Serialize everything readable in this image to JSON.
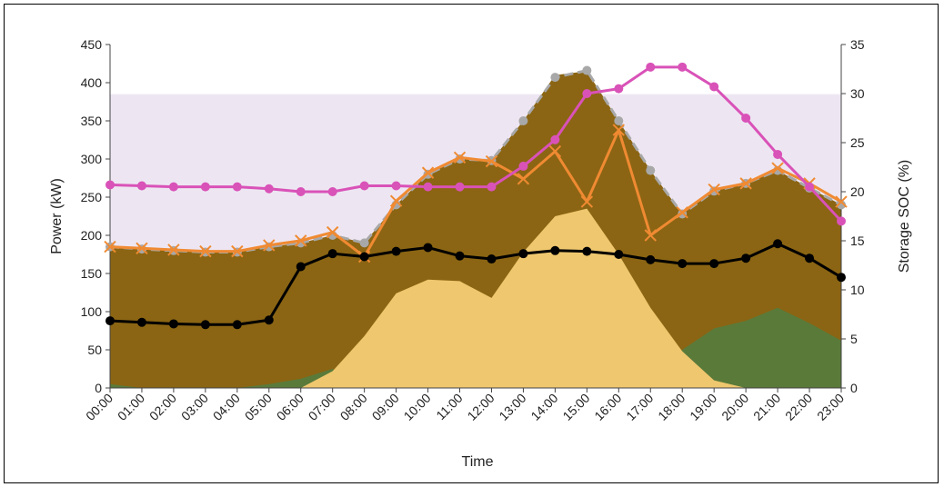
{
  "chart_data": {
    "type": "area",
    "xlabel": "Time",
    "ylabel": "Power (kW)",
    "y2label": "Storage SOC (%)",
    "ylim": [
      0,
      450
    ],
    "y2lim": [
      0,
      35
    ],
    "yticks": [
      0,
      50,
      100,
      150,
      200,
      250,
      300,
      350,
      400,
      450
    ],
    "y2ticks": [
      0,
      5,
      10,
      15,
      20,
      25,
      30,
      35
    ],
    "grid": false,
    "legend": "none",
    "categories": [
      "00:00",
      "01:00",
      "02:00",
      "03:00",
      "04:00",
      "05:00",
      "06:00",
      "07:00",
      "08:00",
      "09:00",
      "10:00",
      "11:00",
      "12:00",
      "13:00",
      "14:00",
      "15:00",
      "16:00",
      "17:00",
      "18:00",
      "19:00",
      "20:00",
      "21:00",
      "22:00",
      "23:00"
    ],
    "band": {
      "from": 0,
      "to": 385,
      "color": "#ede6f2"
    },
    "areas": [
      {
        "color": "#8b6513",
        "values": [
          185,
          182,
          180,
          178,
          178,
          185,
          190,
          200,
          190,
          240,
          280,
          300,
          298,
          350,
          410,
          415,
          350,
          285,
          228,
          258,
          268,
          285,
          262,
          240
        ]
      },
      {
        "color": "#5a7a3a",
        "values": [
          5,
          0,
          0,
          0,
          0,
          5,
          12,
          25,
          0,
          0,
          0,
          0,
          0,
          0,
          0,
          0,
          0,
          0,
          50,
          78,
          88,
          105,
          85,
          62
        ]
      },
      {
        "color": "#efc76e",
        "values": [
          0,
          0,
          0,
          0,
          0,
          0,
          0,
          22,
          68,
          124,
          142,
          140,
          118,
          178,
          225,
          235,
          175,
          105,
          48,
          10,
          0,
          0,
          0,
          0
        ]
      }
    ],
    "series": [
      {
        "color": "#a8a8a8",
        "marker": "dot",
        "dashed": true,
        "axis": "left",
        "values": [
          185,
          182,
          180,
          178,
          178,
          185,
          190,
          200,
          190,
          240,
          280,
          300,
          298,
          350,
          407,
          416,
          350,
          285,
          228,
          258,
          268,
          285,
          262,
          240
        ]
      },
      {
        "color": "#f08a32",
        "marker": "x",
        "dashed": false,
        "axis": "left",
        "values": [
          185,
          183,
          181,
          179,
          179,
          187,
          193,
          204,
          172,
          245,
          282,
          302,
          297,
          274,
          310,
          244,
          338,
          200,
          230,
          260,
          268,
          288,
          268,
          244
        ]
      },
      {
        "color": "#d952b8",
        "marker": "dot",
        "dashed": false,
        "axis": "right",
        "values": [
          20.7,
          20.6,
          20.5,
          20.5,
          20.5,
          20.3,
          20.0,
          20.0,
          20.6,
          20.6,
          20.5,
          20.5,
          20.5,
          22.6,
          25.3,
          30.0,
          30.5,
          32.7,
          32.7,
          30.7,
          27.5,
          23.8,
          20.5,
          17.0
        ]
      },
      {
        "color": "#000000",
        "marker": "dot",
        "dashed": false,
        "axis": "left",
        "values": [
          88,
          86,
          84,
          83,
          83,
          89,
          159,
          176,
          172,
          179,
          184,
          173,
          169,
          176,
          180,
          179,
          175,
          168,
          163,
          163,
          170,
          189,
          170,
          145
        ]
      }
    ]
  }
}
